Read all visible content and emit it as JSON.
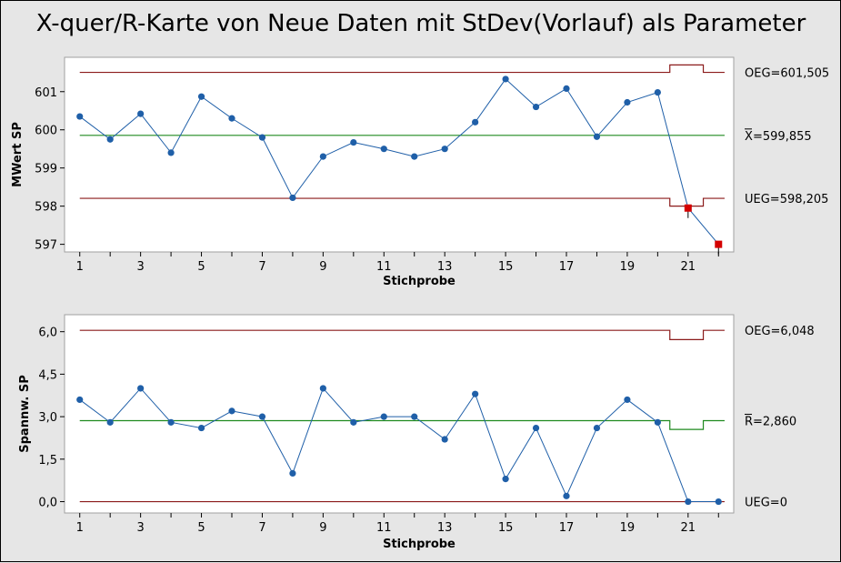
{
  "title": "X-quer/R-Karte von Neue Daten mit StDev(Vorlauf) als Parameter",
  "colors": {
    "background": "#e6e6e6",
    "plot_bg": "#ffffff",
    "limit_line": "#8b1a1a",
    "center_line": "#1f8a1f",
    "series": "#1f5fa8",
    "out_of_control": "#d40000"
  },
  "chart_data": [
    {
      "type": "line",
      "name": "xbar",
      "xlabel": "Stichprobe",
      "ylabel": "MWert SP",
      "x": [
        1,
        2,
        3,
        4,
        5,
        6,
        7,
        8,
        9,
        10,
        11,
        12,
        13,
        14,
        15,
        16,
        17,
        18,
        19,
        20,
        21,
        22
      ],
      "values": [
        600.35,
        599.75,
        600.42,
        599.4,
        600.87,
        600.3,
        599.8,
        598.22,
        599.3,
        599.67,
        599.5,
        599.3,
        599.5,
        600.2,
        601.33,
        600.6,
        601.08,
        599.82,
        600.72,
        600.98,
        597.95,
        597.0
      ],
      "out_of_control_points": [
        21,
        22
      ],
      "xticks": [
        "1",
        "3",
        "5",
        "7",
        "9",
        "11",
        "13",
        "15",
        "17",
        "19",
        "21"
      ],
      "xtick_values": [
        1,
        3,
        5,
        7,
        9,
        11,
        13,
        15,
        17,
        19,
        21
      ],
      "yticks": [
        "597",
        "598",
        "599",
        "600",
        "601"
      ],
      "ytick_values": [
        597,
        598,
        599,
        600,
        601
      ],
      "ylim": [
        596.8,
        601.9
      ],
      "xlim": [
        0.5,
        22.5
      ],
      "ucl": 601.505,
      "ucl_step_20_22": 601.7,
      "center": 599.855,
      "lcl": 598.205,
      "lcl_step_20_22": 598.0,
      "labels": {
        "ucl": "OEG=601,505",
        "center_prefix": "X",
        "center": "=599,855",
        "lcl": "UEG=598,205"
      }
    },
    {
      "type": "line",
      "name": "range",
      "xlabel": "Stichprobe",
      "ylabel": "Spannw. SP",
      "x": [
        1,
        2,
        3,
        4,
        5,
        6,
        7,
        8,
        9,
        10,
        11,
        12,
        13,
        14,
        15,
        16,
        17,
        18,
        19,
        20,
        21,
        22
      ],
      "values": [
        3.6,
        2.8,
        4.0,
        2.8,
        2.6,
        3.2,
        3.0,
        1.0,
        4.0,
        2.8,
        3.0,
        3.0,
        2.2,
        3.8,
        0.8,
        2.6,
        0.2,
        2.6,
        3.6,
        2.8,
        0.0,
        0.0
      ],
      "xticks": [
        "1",
        "3",
        "5",
        "7",
        "9",
        "11",
        "13",
        "15",
        "17",
        "19",
        "21"
      ],
      "xtick_values": [
        1,
        3,
        5,
        7,
        9,
        11,
        13,
        15,
        17,
        19,
        21
      ],
      "yticks": [
        "0,0",
        "1,5",
        "3,0",
        "4,5",
        "6,0"
      ],
      "ytick_values": [
        0,
        1.5,
        3,
        4.5,
        6
      ],
      "ylim": [
        -0.4,
        6.6
      ],
      "xlim": [
        0.5,
        22.5
      ],
      "ucl": 6.048,
      "ucl_step_20_22": 5.72,
      "center": 2.86,
      "center_step_20_22": 2.55,
      "lcl": 0.0,
      "labels": {
        "ucl": "OEG=6,048",
        "center_prefix": "R",
        "center": "=2,860",
        "lcl": "UEG=0"
      }
    }
  ]
}
